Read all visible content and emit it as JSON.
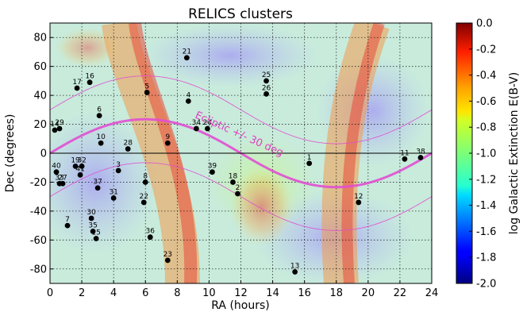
{
  "chart_data": {
    "type": "scatter",
    "title": "RELICS clusters",
    "xlabel": "RA (hours)",
    "ylabel": "Dec (degrees)",
    "xlim": [
      0,
      24
    ],
    "ylim": [
      -90,
      90
    ],
    "xticks": [
      0,
      2,
      4,
      6,
      8,
      10,
      12,
      14,
      16,
      18,
      20,
      22,
      24
    ],
    "yticks": [
      -80,
      -60,
      -40,
      -20,
      0,
      20,
      40,
      60,
      80
    ],
    "grid": true,
    "annotation": "Ecliptic +/- 30 deg",
    "colorbar": {
      "label": "log Galactic Extinction E(B-V)",
      "range": [
        -2.0,
        0.0
      ],
      "ticks": [
        "-2.0",
        "-1.8",
        "-1.6",
        "-1.4",
        "-1.2",
        "-1.0",
        "-0.8",
        "-0.6",
        "-0.4",
        "-0.2",
        "0.0"
      ],
      "colormap": "jet"
    },
    "points": [
      {
        "label": "1",
        "x": 16.3,
        "y": -7
      },
      {
        "label": "2",
        "x": 11.8,
        "y": -28
      },
      {
        "label": "3",
        "x": 4.3,
        "y": -12
      },
      {
        "label": "4",
        "x": 8.7,
        "y": 36
      },
      {
        "label": "5",
        "x": 6.1,
        "y": 42
      },
      {
        "label": "6",
        "x": 3.1,
        "y": 26
      },
      {
        "label": "7",
        "x": 1.1,
        "y": -50
      },
      {
        "label": "8",
        "x": 6.0,
        "y": -20
      },
      {
        "label": "9",
        "x": 7.4,
        "y": 7
      },
      {
        "label": "10",
        "x": 3.2,
        "y": 7
      },
      {
        "label": "11",
        "x": 22.3,
        "y": -4
      },
      {
        "label": "12",
        "x": 19.4,
        "y": -34
      },
      {
        "label": "13",
        "x": 15.4,
        "y": -82
      },
      {
        "label": "14",
        "x": 0.3,
        "y": 16
      },
      {
        "label": "15",
        "x": 2.9,
        "y": -59
      },
      {
        "label": "16",
        "x": 2.5,
        "y": 49
      },
      {
        "label": "17",
        "x": 1.7,
        "y": 45
      },
      {
        "label": "18",
        "x": 11.5,
        "y": -20
      },
      {
        "label": "19",
        "x": 1.6,
        "y": -9
      },
      {
        "label": "21",
        "x": 8.6,
        "y": 66
      },
      {
        "label": "22",
        "x": 5.9,
        "y": -34
      },
      {
        "label": "23",
        "x": 7.4,
        "y": -74
      },
      {
        "label": "24",
        "x": 9.9,
        "y": 17
      },
      {
        "label": "25",
        "x": 13.6,
        "y": 50
      },
      {
        "label": "26",
        "x": 13.6,
        "y": 41
      },
      {
        "label": "27",
        "x": 0.8,
        "y": -21
      },
      {
        "label": "28",
        "x": 4.9,
        "y": 3
      },
      {
        "label": "29",
        "x": 0.6,
        "y": 17
      },
      {
        "label": "30",
        "x": 2.6,
        "y": -45
      },
      {
        "label": "31",
        "x": 4.0,
        "y": -31
      },
      {
        "label": "32",
        "x": 2.0,
        "y": -9
      },
      {
        "label": "33",
        "x": 0.6,
        "y": -21
      },
      {
        "label": "34",
        "x": 9.2,
        "y": 17
      },
      {
        "label": "35",
        "x": 2.7,
        "y": -54
      },
      {
        "label": "36",
        "x": 6.3,
        "y": -58
      },
      {
        "label": "37",
        "x": 3.0,
        "y": -24
      },
      {
        "label": "38",
        "x": 23.3,
        "y": -3
      },
      {
        "label": "39",
        "x": 10.2,
        "y": -13
      },
      {
        "label": "40",
        "x": 0.4,
        "y": -13
      },
      {
        "label": "41",
        "x": 1.9,
        "y": -15
      }
    ],
    "ecliptic_offset_deg": 30,
    "obliquity_deg": 23.44
  }
}
